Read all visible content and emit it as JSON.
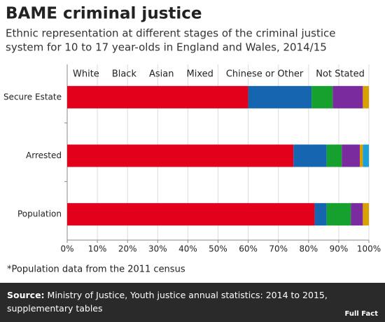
{
  "chart_data": {
    "type": "stacked-bar-horizontal",
    "title": "BAME criminal justice",
    "subtitle": [
      "Ethnic representation at different stages of the criminal justice",
      "system for 10 to 17 year-olds in England and Wales, 2014/15"
    ],
    "categories": [
      "Secure Estate",
      "Arrested",
      "Population"
    ],
    "series": [
      {
        "name": "White",
        "color": "#e2001a",
        "values": [
          60,
          75,
          82
        ]
      },
      {
        "name": "Black",
        "color": "#1565b0",
        "values": [
          21,
          11,
          4
        ]
      },
      {
        "name": "Asian",
        "color": "#16a02e",
        "values": [
          7,
          5,
          8
        ]
      },
      {
        "name": "Mixed",
        "color": "#7a2c9e",
        "values": [
          10,
          6,
          4
        ]
      },
      {
        "name": "Chinese or Other",
        "color": "#d9a000",
        "values": [
          2,
          1,
          2
        ]
      },
      {
        "name": "Not Stated",
        "color": "#1ba0db",
        "values": [
          0,
          2,
          0
        ]
      }
    ],
    "xlim": [
      0,
      100
    ],
    "xticks": [
      {
        "value": 0,
        "label": "0%"
      },
      {
        "value": 10,
        "label": "10%"
      },
      {
        "value": 20,
        "label": "20%"
      },
      {
        "value": 30,
        "label": "30%"
      },
      {
        "value": 40,
        "label": "40%"
      },
      {
        "value": 50,
        "label": "50%"
      },
      {
        "value": 60,
        "label": "60%"
      },
      {
        "value": 70,
        "label": "70%"
      },
      {
        "value": 80,
        "label": "80%"
      },
      {
        "value": 90,
        "label": "90%"
      },
      {
        "value": 100,
        "label": "100%"
      }
    ],
    "grid": true,
    "note": "*Population data from the 2011 census",
    "source_label": "Source:",
    "source": "Ministry of Justice, Youth justice annual statistics: 2014 to 2015, supplementary tables",
    "logo": "Full Fact"
  }
}
